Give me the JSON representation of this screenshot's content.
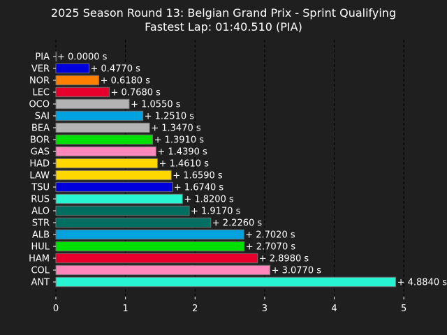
{
  "chart_data": {
    "type": "bar",
    "orientation": "horizontal",
    "title": "2025 Season Round 13: Belgian Grand Prix - Sprint Qualifying",
    "subtitle": "Fastest Lap: 01:40.510 (PIA)",
    "xlabel": "",
    "ylabel": "",
    "xlim": [
      0,
      5.5
    ],
    "xticks": [
      0,
      1,
      2,
      3,
      4,
      5
    ],
    "grid": "vertical dashed",
    "legend": "none",
    "background_color": "#1f1f1f",
    "bar_edge_color": "#6e6e6e",
    "grid_color": "#000000",
    "categories": [
      "PIA",
      "VER",
      "NOR",
      "LEC",
      "OCO",
      "SAI",
      "BEA",
      "BOR",
      "GAS",
      "HAD",
      "LAW",
      "TSU",
      "RUS",
      "ALO",
      "STR",
      "ALB",
      "HUL",
      "HAM",
      "COL",
      "ANT"
    ],
    "values": [
      0.0,
      0.477,
      0.618,
      0.768,
      1.055,
      1.251,
      1.347,
      1.391,
      1.439,
      1.461,
      1.659,
      1.674,
      1.82,
      1.917,
      2.226,
      2.702,
      2.707,
      2.898,
      3.077,
      4.884
    ],
    "data_labels": [
      "+ 0.0000 s",
      "+ 0.4770 s",
      "+ 0.6180 s",
      "+ 0.7680 s",
      "+ 1.0550 s",
      "+ 1.2510 s",
      "+ 1.3470 s",
      "+ 1.3910 s",
      "+ 1.4390 s",
      "+ 1.4610 s",
      "+ 1.6590 s",
      "+ 1.6740 s",
      "+ 1.8200 s",
      "+ 1.9170 s",
      "+ 2.2260 s",
      "+ 2.7020 s",
      "+ 2.7070 s",
      "+ 2.8980 s",
      "+ 3.0770 s",
      "+ 4.8840 s"
    ],
    "colors": [
      "#ff8000",
      "#0000dd",
      "#ff8000",
      "#e8002d",
      "#b3b3b3",
      "#00a3e0",
      "#b3b3b3",
      "#00e000",
      "#ff87bc",
      "#ffd700",
      "#ffd700",
      "#0000dd",
      "#27f4d2",
      "#006f62",
      "#006f62",
      "#00a3e0",
      "#00e000",
      "#e8002d",
      "#ff87bc",
      "#27f4d2"
    ]
  }
}
